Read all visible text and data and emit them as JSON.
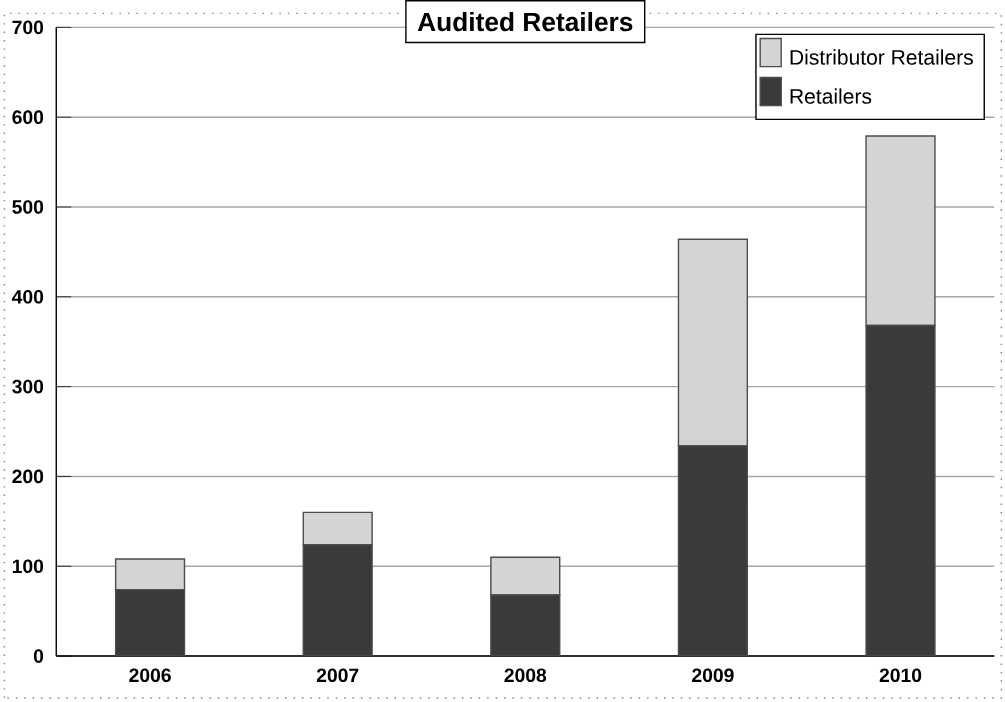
{
  "chart_data": {
    "type": "bar",
    "title": "Audited Retailers",
    "stacked": true,
    "categories": [
      "2006",
      "2007",
      "2008",
      "2009",
      "2010"
    ],
    "series": [
      {
        "name": "Retailers",
        "color": "#3a3a3a",
        "values": [
          74,
          124,
          68,
          234,
          368
        ]
      },
      {
        "name": "Distributor Retailers",
        "color": "#d4d4d4",
        "values": [
          34,
          36,
          42,
          230,
          211
        ]
      }
    ],
    "ylim": [
      0,
      700
    ],
    "yticks": [
      0,
      100,
      200,
      300,
      400,
      500,
      600,
      700
    ],
    "grid": "y",
    "legend": "top right"
  }
}
